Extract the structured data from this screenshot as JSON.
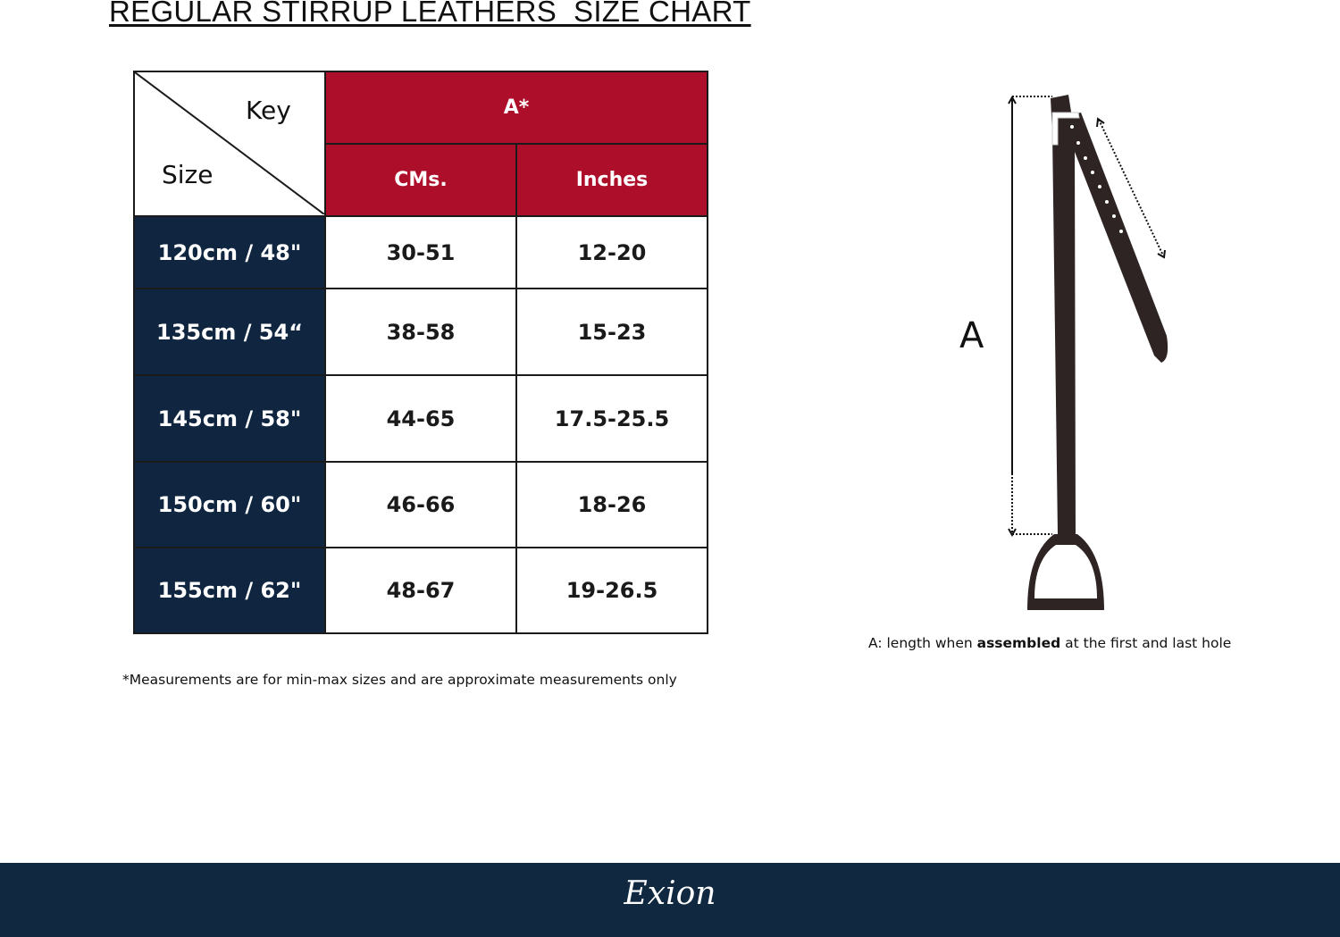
{
  "title": "REGULAR STIRRUP LEATHERS  SIZE CHART",
  "table": {
    "corner_key": "Key",
    "corner_size": "Size",
    "group_header": "A*",
    "columns": [
      "CMs.",
      "Inches"
    ],
    "rows": [
      {
        "size": "120cm / 48\"",
        "cms": "30-51",
        "inches": "12-20"
      },
      {
        "size": "135cm / 54“",
        "cms": "38-58",
        "inches": "15-23"
      },
      {
        "size": "145cm / 58\"",
        "cms": "44-65",
        "inches": "17.5-25.5"
      },
      {
        "size": "150cm / 60\"",
        "cms": "46-66",
        "inches": "18-26"
      },
      {
        "size": "155cm / 62\"",
        "cms": "48-67",
        "inches": "19-26.5"
      }
    ]
  },
  "note": "*Measurements are for min-max sizes and are approximate measurements only",
  "diagram": {
    "label": "A",
    "caption_pre": "A: length when ",
    "caption_bold": "assembled",
    "caption_post": " at the first and last hole"
  },
  "footer": {
    "logo": "Exion"
  },
  "colors": {
    "header_red": "#ad0f2b",
    "navy": "#0f2540",
    "leather": "#2e2424"
  }
}
